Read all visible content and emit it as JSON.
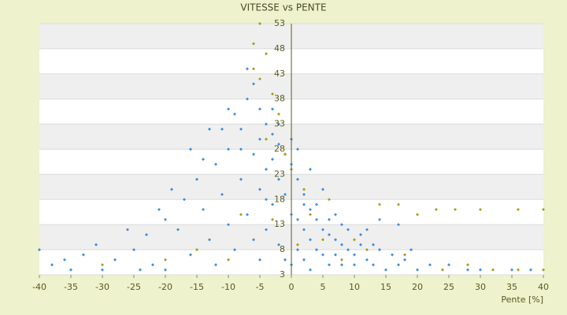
{
  "chart_data": {
    "type": "scatter",
    "title": "VITESSE vs PENTE",
    "x_label": "Pente [%]",
    "xlim": [
      -40,
      40
    ],
    "xticks": [
      -40,
      -35,
      -30,
      -25,
      -20,
      -15,
      -10,
      -5,
      0,
      5,
      10,
      15,
      20,
      25,
      30,
      35,
      40
    ],
    "ylim": [
      3,
      53
    ],
    "yticks": [
      3,
      8,
      13,
      18,
      23,
      28,
      33,
      38,
      43,
      48,
      53
    ],
    "grid": true,
    "series": [
      {
        "color": "#3a8edb",
        "x": [
          -40,
          -38,
          -35,
          -33,
          -31,
          -28,
          -25,
          -23,
          -22,
          -20,
          -20,
          -18,
          -17,
          -16,
          -15,
          -14,
          -13,
          -12,
          -12,
          -11,
          -10,
          -10,
          -9,
          -9,
          -8,
          -8,
          -7,
          -7,
          -6,
          -6,
          -6,
          -5,
          -5,
          -5,
          -4,
          -4,
          -4,
          -3,
          -3,
          -3,
          -2,
          -2,
          -2,
          -1,
          -1,
          -1,
          0,
          0,
          0,
          1,
          1,
          1,
          2,
          2,
          2,
          3,
          3,
          4,
          4,
          5,
          5,
          6,
          6,
          7,
          7,
          8,
          8,
          9,
          10,
          10,
          11,
          12,
          13,
          14,
          15,
          17,
          18,
          20,
          22,
          25,
          28,
          30,
          35,
          38,
          -30,
          -19,
          -14,
          -11,
          -8,
          -3,
          -2,
          0,
          1,
          3,
          5,
          7,
          9,
          11,
          13,
          16,
          19,
          14,
          17,
          -26,
          -21,
          -16,
          -13,
          -10,
          -7,
          -4,
          2,
          4,
          6,
          8,
          12,
          -36,
          -24,
          -5,
          3
        ],
        "y": [
          8,
          5,
          4,
          7,
          9,
          6,
          8,
          11,
          5,
          14,
          4,
          12,
          18,
          7,
          22,
          16,
          10,
          25,
          5,
          19,
          28,
          13,
          35,
          8,
          32,
          22,
          38,
          15,
          41,
          27,
          10,
          36,
          30,
          20,
          33,
          24,
          12,
          31,
          26,
          17,
          29,
          22,
          9,
          27,
          19,
          6,
          25,
          15,
          5,
          22,
          14,
          8,
          19,
          12,
          6,
          16,
          10,
          14,
          8,
          12,
          7,
          11,
          5,
          10,
          7,
          9,
          5,
          8,
          7,
          5,
          9,
          6,
          5,
          8,
          4,
          5,
          6,
          4,
          5,
          5,
          4,
          4,
          4,
          4,
          4,
          20,
          26,
          32,
          28,
          36,
          33,
          30,
          28,
          24,
          20,
          15,
          12,
          11,
          9,
          7,
          8,
          14,
          13,
          12,
          16,
          28,
          32,
          36,
          44,
          18,
          17,
          17,
          14,
          13,
          12,
          6,
          4,
          6,
          4
        ]
      },
      {
        "color": "#a89c12",
        "x": [
          -5,
          -6,
          -4,
          -6,
          -5,
          -3,
          -2,
          -4,
          -1,
          0,
          2,
          3,
          -30,
          -20,
          -15,
          -10,
          5,
          8,
          12,
          14,
          17,
          20,
          23,
          26,
          30,
          36,
          40,
          24,
          28,
          32,
          36,
          40,
          -8,
          -3,
          1,
          10,
          18,
          6
        ],
        "y": [
          53,
          49,
          47,
          44,
          42,
          39,
          35,
          30,
          27,
          24,
          20,
          15,
          5,
          6,
          8,
          6,
          10,
          6,
          8,
          17,
          17,
          15,
          16,
          16,
          16,
          16,
          16,
          4,
          5,
          4,
          4,
          4,
          15,
          14,
          9,
          10,
          7,
          18
        ]
      }
    ]
  }
}
